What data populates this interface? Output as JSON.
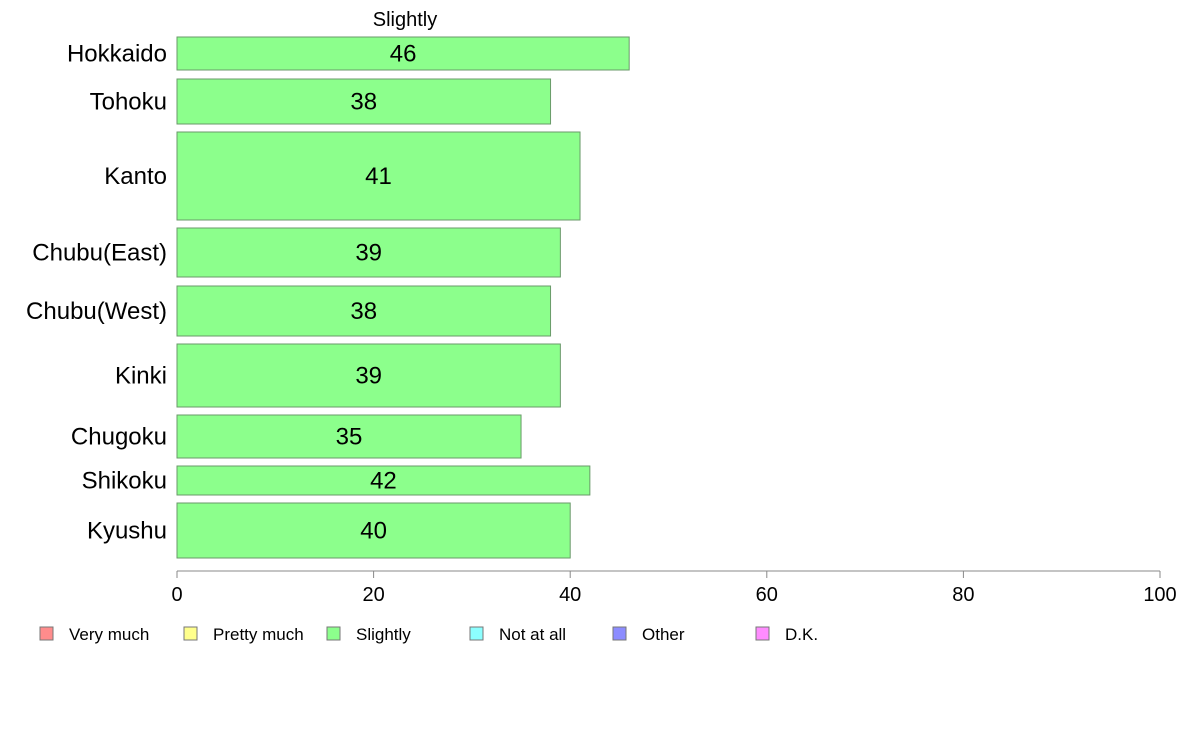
{
  "chart_data": {
    "type": "bar",
    "orientation": "horizontal",
    "title": "Slightly",
    "categories": [
      "Hokkaido",
      "Tohoku",
      "Kanto",
      "Chubu(East)",
      "Chubu(West)",
      "Kinki",
      "Chugoku",
      "Shikoku",
      "Kyushu"
    ],
    "values": [
      46,
      38,
      41,
      39,
      38,
      39,
      35,
      42,
      40
    ],
    "bar_color": "#8cff8c",
    "xlim": [
      0,
      100
    ],
    "xticks": [
      0,
      20,
      40,
      60,
      80,
      100
    ],
    "grid": false,
    "legend": {
      "placement": "bottom",
      "entries": [
        {
          "label": "Very much",
          "color": "#ff8c8c"
        },
        {
          "label": "Pretty much",
          "color": "#ffff8c"
        },
        {
          "label": "Slightly",
          "color": "#8cff8c"
        },
        {
          "label": "Not at all",
          "color": "#8cffff"
        },
        {
          "label": "Other",
          "color": "#8c8cff"
        },
        {
          "label": "D.K.",
          "color": "#ff8cff"
        }
      ]
    }
  }
}
